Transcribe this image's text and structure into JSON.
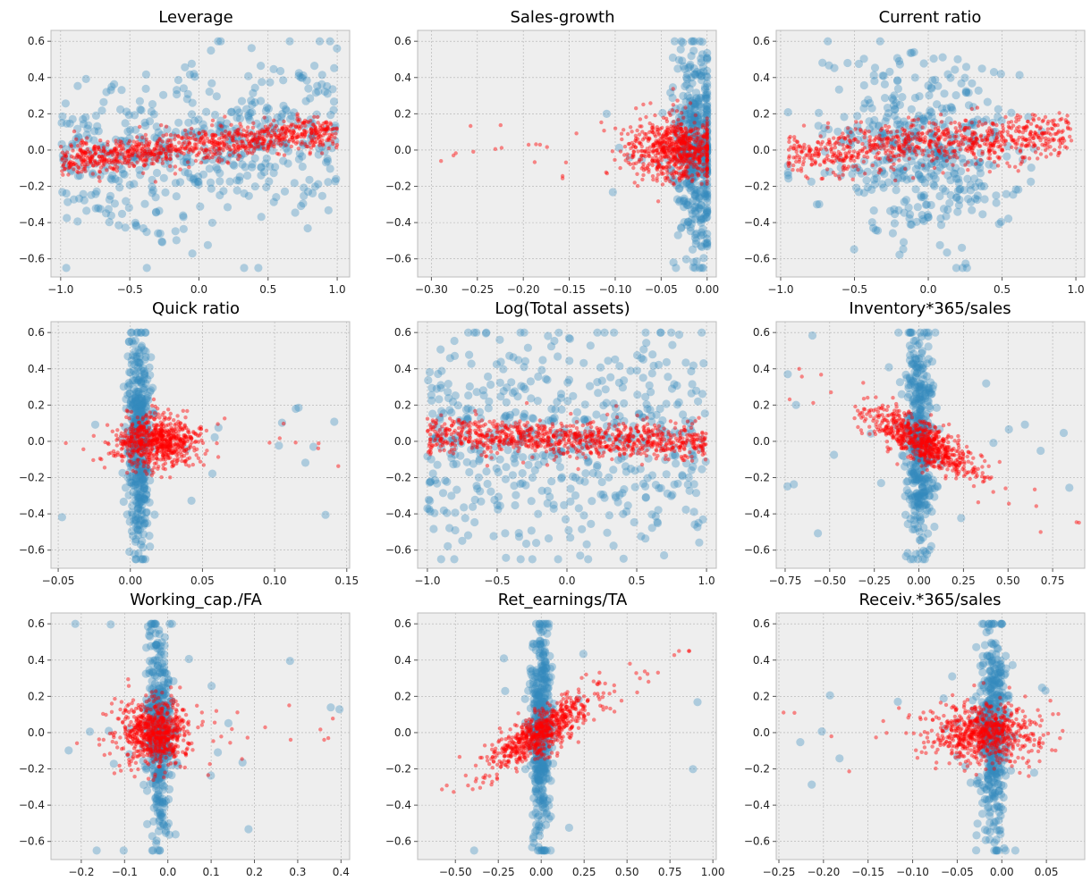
{
  "figure": {
    "background": "#ffffff",
    "axes_face": "#eeeeee",
    "axes_edge": "#bcbcbc",
    "grid_color": "#b0b0b0",
    "series_colors": {
      "blue": "#348abd",
      "red": "#ff0000"
    }
  },
  "chart_data": [
    {
      "type": "scatter",
      "title": "Leverage",
      "xlim": [
        -1.07,
        1.09
      ],
      "ylim": [
        -0.7,
        0.66
      ],
      "xticks": [
        -1.0,
        -0.5,
        0.0,
        0.5,
        1.0
      ],
      "xtick_labels": [
        "−1.0",
        "−0.5",
        "0.0",
        "0.5",
        "1.0"
      ],
      "yticks": [
        -0.6,
        -0.4,
        -0.2,
        0.0,
        0.2,
        0.4,
        0.6
      ],
      "ytick_labels": [
        "−0.6",
        "−0.4",
        "−0.2",
        "0.0",
        "0.2",
        "0.4",
        "0.6"
      ],
      "grid": true,
      "series": [
        {
          "color": "#348abd",
          "alpha": 0.35,
          "marker": "large",
          "n": 500,
          "x_range": [
            -1.0,
            1.0
          ],
          "trend": [
            -0.05,
            0.1
          ],
          "spread": 0.22,
          "clip": [
            -0.65,
            0.6
          ]
        },
        {
          "color": "#ff0000",
          "alpha": 0.45,
          "marker": "small",
          "n": 900,
          "x_range": [
            -1.0,
            1.0
          ],
          "trend": [
            -0.06,
            0.11
          ],
          "spread": 0.045,
          "clip": [
            -0.3,
            0.3
          ]
        }
      ]
    },
    {
      "type": "scatter",
      "title": "Sales-growth",
      "xlim": [
        -0.315,
        0.01
      ],
      "ylim": [
        -0.7,
        0.66
      ],
      "xticks": [
        -0.3,
        -0.25,
        -0.2,
        -0.15,
        -0.1,
        -0.05,
        0.0
      ],
      "xtick_labels": [
        "−0.30",
        "−0.25",
        "−0.20",
        "−0.15",
        "−0.10",
        "−0.05",
        "0.00"
      ],
      "yticks": [
        -0.6,
        -0.4,
        -0.2,
        0.0,
        0.2,
        0.4,
        0.6
      ],
      "ytick_labels": [
        "−0.6",
        "−0.4",
        "−0.2",
        "0.0",
        "0.2",
        "0.4",
        "0.6"
      ],
      "grid": true,
      "series": [
        {
          "color": "#348abd",
          "alpha": 0.35,
          "marker": "large",
          "n": 450,
          "x_center": -0.012,
          "x_spread": 0.012,
          "x_range": [
            -0.16,
            0.0
          ],
          "y_spread": 0.3,
          "clip": [
            -0.65,
            0.6
          ]
        },
        {
          "color": "#ff0000",
          "alpha": 0.45,
          "marker": "small",
          "n": 700,
          "x_center": -0.035,
          "x_spread": 0.025,
          "x_range": [
            -0.3,
            0.0
          ],
          "y_spread": 0.09,
          "clip": [
            -0.3,
            0.35
          ]
        }
      ]
    },
    {
      "type": "scatter",
      "title": "Current ratio",
      "xlim": [
        -1.03,
        1.06
      ],
      "ylim": [
        -0.7,
        0.66
      ],
      "xticks": [
        -1.0,
        -0.5,
        0.0,
        0.5,
        1.0
      ],
      "xtick_labels": [
        "−1.0",
        "−0.5",
        "0.0",
        "0.5",
        "1.0"
      ],
      "yticks": [
        -0.6,
        -0.4,
        -0.2,
        0.0,
        0.2,
        0.4,
        0.6
      ],
      "ytick_labels": [
        "−0.6",
        "−0.4",
        "−0.2",
        "0.0",
        "0.2",
        "0.4",
        "0.6"
      ],
      "grid": true,
      "series": [
        {
          "color": "#348abd",
          "alpha": 0.35,
          "marker": "large",
          "n": 450,
          "x_center": -0.05,
          "x_spread": 0.32,
          "x_range": [
            -0.95,
            0.97
          ],
          "y_spread": 0.25,
          "clip": [
            -0.65,
            0.6
          ]
        },
        {
          "color": "#ff0000",
          "alpha": 0.45,
          "marker": "small",
          "n": 800,
          "x_center": 0.0,
          "x_spread": 0.33,
          "x_range": [
            -0.95,
            0.97
          ],
          "trend": [
            -0.02,
            0.09
          ],
          "y_spread": 0.06,
          "clip": [
            -0.25,
            0.25
          ]
        }
      ]
    },
    {
      "type": "scatter",
      "title": "Quick ratio",
      "xlim": [
        -0.055,
        0.152
      ],
      "ylim": [
        -0.7,
        0.66
      ],
      "xticks": [
        -0.05,
        0.0,
        0.05,
        0.1,
        0.15
      ],
      "xtick_labels": [
        "−0.05",
        "0.00",
        "0.05",
        "0.10",
        "0.15"
      ],
      "yticks": [
        -0.6,
        -0.4,
        -0.2,
        0.0,
        0.2,
        0.4,
        0.6
      ],
      "ytick_labels": [
        "−0.6",
        "−0.4",
        "−0.2",
        "0.0",
        "0.2",
        "0.4",
        "0.6"
      ],
      "grid": true,
      "series": [
        {
          "color": "#348abd",
          "alpha": 0.35,
          "marker": "large",
          "n": 450,
          "x_center": 0.006,
          "x_spread": 0.004,
          "x_range": [
            -0.05,
            0.145
          ],
          "y_spread": 0.3,
          "clip": [
            -0.65,
            0.6
          ]
        },
        {
          "color": "#ff0000",
          "alpha": 0.45,
          "marker": "small",
          "n": 700,
          "x_center": 0.018,
          "x_spread": 0.014,
          "x_range": [
            -0.05,
            0.145
          ],
          "y_spread": 0.07,
          "clip": [
            -0.3,
            0.4
          ]
        }
      ]
    },
    {
      "type": "scatter",
      "title": "Log(Total assets)",
      "xlim": [
        -1.07,
        1.07
      ],
      "ylim": [
        -0.7,
        0.66
      ],
      "xticks": [
        -1.0,
        -0.5,
        0.0,
        0.5,
        1.0
      ],
      "xtick_labels": [
        "−1.0",
        "−0.5",
        "0.0",
        "0.5",
        "1.0"
      ],
      "yticks": [
        -0.6,
        -0.4,
        -0.2,
        0.0,
        0.2,
        0.4,
        0.6
      ],
      "ytick_labels": [
        "−0.6",
        "−0.4",
        "−0.2",
        "0.0",
        "0.2",
        "0.4",
        "0.6"
      ],
      "grid": true,
      "series": [
        {
          "color": "#348abd",
          "alpha": 0.35,
          "marker": "large",
          "n": 550,
          "x_range": [
            -1.0,
            1.0
          ],
          "trend": [
            0.0,
            0.0
          ],
          "spread": 0.3,
          "clip": [
            -0.65,
            0.6
          ]
        },
        {
          "color": "#ff0000",
          "alpha": 0.45,
          "marker": "small",
          "n": 900,
          "x_range": [
            -1.0,
            1.0
          ],
          "trend": [
            0.04,
            -0.01
          ],
          "spread": 0.05,
          "clip": [
            -0.25,
            0.25
          ]
        }
      ]
    },
    {
      "type": "scatter",
      "title": "Inventory*365/sales",
      "xlim": [
        -0.8,
        0.93
      ],
      "ylim": [
        -0.7,
        0.66
      ],
      "xticks": [
        -0.75,
        -0.5,
        -0.25,
        0.0,
        0.25,
        0.5,
        0.75
      ],
      "xtick_labels": [
        "−0.75",
        "−0.50",
        "−0.25",
        "0.00",
        "0.25",
        "0.50",
        "0.75"
      ],
      "yticks": [
        -0.6,
        -0.4,
        -0.2,
        0.0,
        0.2,
        0.4,
        0.6
      ],
      "ytick_labels": [
        "−0.6",
        "−0.4",
        "−0.2",
        "0.0",
        "0.2",
        "0.4",
        "0.6"
      ],
      "grid": true,
      "series": [
        {
          "color": "#348abd",
          "alpha": 0.35,
          "marker": "large",
          "n": 450,
          "x_center": 0.0,
          "x_spread": 0.04,
          "x_range": [
            -0.75,
            0.9
          ],
          "y_spread": 0.3,
          "clip": [
            -0.65,
            0.6
          ]
        },
        {
          "color": "#ff0000",
          "alpha": 0.45,
          "marker": "small",
          "n": 700,
          "x_center": 0.02,
          "x_spread": 0.15,
          "x_range": [
            -0.75,
            0.9
          ],
          "slope": -0.5,
          "y_spread": 0.06,
          "clip": [
            -0.5,
            0.4
          ]
        }
      ]
    },
    {
      "type": "scatter",
      "title": "Working_cap./FA",
      "xlim": [
        -0.27,
        0.42
      ],
      "ylim": [
        -0.7,
        0.66
      ],
      "xticks": [
        -0.2,
        -0.1,
        0.0,
        0.1,
        0.2,
        0.3,
        0.4
      ],
      "xtick_labels": [
        "−0.2",
        "−0.1",
        "0.0",
        "0.1",
        "0.2",
        "0.3",
        "0.4"
      ],
      "yticks": [
        -0.6,
        -0.4,
        -0.2,
        0.0,
        0.2,
        0.4,
        0.6
      ],
      "ytick_labels": [
        "−0.6",
        "−0.4",
        "−0.2",
        "0.0",
        "0.2",
        "0.4",
        "0.6"
      ],
      "grid": true,
      "series": [
        {
          "color": "#348abd",
          "alpha": 0.35,
          "marker": "large",
          "n": 450,
          "x_center": -0.02,
          "x_spread": 0.015,
          "x_range": [
            -0.25,
            0.4
          ],
          "y_spread": 0.3,
          "clip": [
            -0.65,
            0.6
          ]
        },
        {
          "color": "#ff0000",
          "alpha": 0.45,
          "marker": "small",
          "n": 700,
          "x_center": -0.03,
          "x_spread": 0.04,
          "x_range": [
            -0.25,
            0.4
          ],
          "y_spread": 0.09,
          "clip": [
            -0.5,
            0.5
          ]
        }
      ]
    },
    {
      "type": "scatter",
      "title": "Ret_earnings/TA",
      "xlim": [
        -0.72,
        1.02
      ],
      "ylim": [
        -0.7,
        0.66
      ],
      "xticks": [
        -0.5,
        -0.25,
        0.0,
        0.25,
        0.5,
        0.75,
        1.0
      ],
      "xtick_labels": [
        "−0.50",
        "−0.25",
        "0.00",
        "0.25",
        "0.50",
        "0.75",
        "1.00"
      ],
      "yticks": [
        -0.6,
        -0.4,
        -0.2,
        0.0,
        0.2,
        0.4,
        0.6
      ],
      "ytick_labels": [
        "−0.6",
        "−0.4",
        "−0.2",
        "0.0",
        "0.2",
        "0.4",
        "0.6"
      ],
      "grid": true,
      "series": [
        {
          "color": "#348abd",
          "alpha": 0.35,
          "marker": "large",
          "n": 450,
          "x_center": 0.0,
          "x_spread": 0.03,
          "x_range": [
            -0.65,
            0.95
          ],
          "y_spread": 0.3,
          "clip": [
            -0.65,
            0.6
          ]
        },
        {
          "color": "#ff0000",
          "alpha": 0.45,
          "marker": "small",
          "n": 700,
          "x_center": 0.0,
          "x_spread": 0.15,
          "x_range": [
            -0.65,
            0.95
          ],
          "slope": 0.55,
          "y_spread": 0.06,
          "clip": [
            -0.45,
            0.45
          ]
        }
      ]
    },
    {
      "type": "scatter",
      "title": "Receiv.*365/sales",
      "xlim": [
        -0.253,
        0.093
      ],
      "ylim": [
        -0.7,
        0.66
      ],
      "xticks": [
        -0.25,
        -0.2,
        -0.15,
        -0.1,
        -0.05,
        0.0,
        0.05
      ],
      "xtick_labels": [
        "−0.25",
        "−0.20",
        "−0.15",
        "−0.10",
        "−0.05",
        "0.00",
        "0.05"
      ],
      "yticks": [
        -0.6,
        -0.4,
        -0.2,
        0.0,
        0.2,
        0.4,
        0.6
      ],
      "ytick_labels": [
        "−0.6",
        "−0.4",
        "−0.2",
        "0.0",
        "0.2",
        "0.4",
        "0.6"
      ],
      "grid": true,
      "series": [
        {
          "color": "#348abd",
          "alpha": 0.35,
          "marker": "large",
          "n": 450,
          "x_center": -0.01,
          "x_spread": 0.008,
          "x_range": [
            -0.25,
            0.08
          ],
          "y_spread": 0.3,
          "clip": [
            -0.65,
            0.6
          ]
        },
        {
          "color": "#ff0000",
          "alpha": 0.45,
          "marker": "small",
          "n": 700,
          "x_center": -0.02,
          "x_spread": 0.03,
          "x_range": [
            -0.25,
            0.08
          ],
          "y_spread": 0.08,
          "clip": [
            -0.3,
            0.3
          ]
        }
      ]
    }
  ]
}
